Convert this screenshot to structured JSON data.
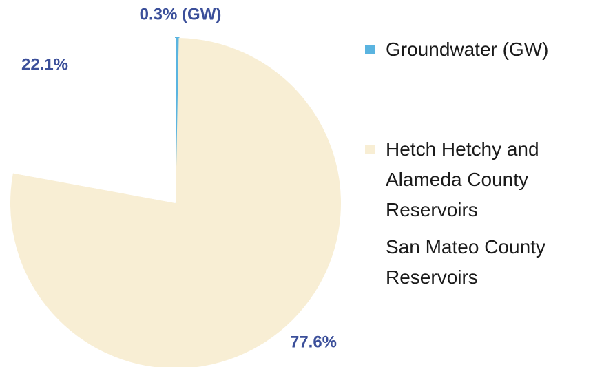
{
  "chart_data": {
    "type": "pie",
    "series": [
      {
        "name": "Groundwater (GW)",
        "color": "#5ab4e0",
        "values": [
          0.3
        ]
      },
      {
        "name": "Hetch Hetchy and Alameda County Reservoirs",
        "color": "#f8eed4",
        "values": [
          77.6
        ]
      },
      {
        "name": "San Mateo County Reservoirs",
        "color": "#ffffff",
        "values": [
          22.1
        ]
      }
    ],
    "value_labels": [
      "0.3% (GW)",
      "77.6%",
      "22.1%"
    ],
    "legend": "right"
  }
}
